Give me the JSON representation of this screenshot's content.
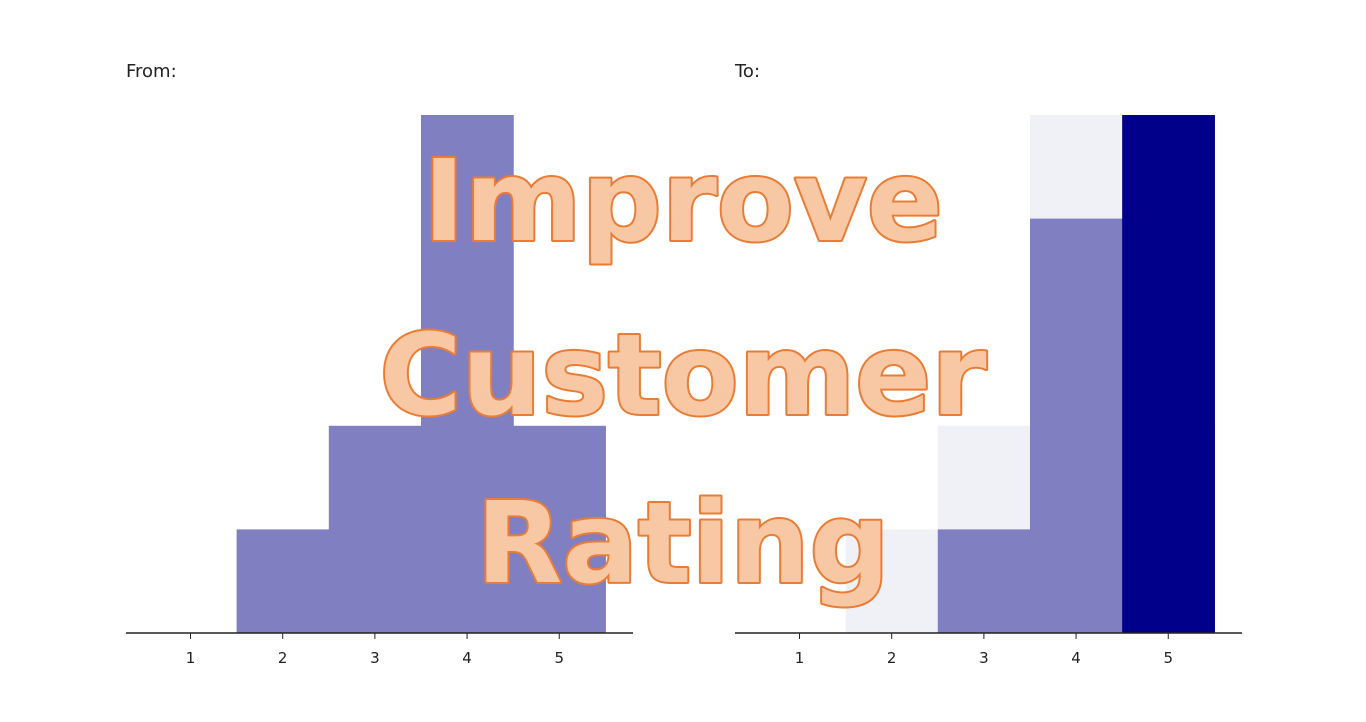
{
  "overlay": {
    "lines": [
      "Improve",
      "Customer",
      "Rating"
    ],
    "fill_color": "#F8C7A4",
    "stroke_color": "#EC7C34"
  },
  "chart_data": [
    {
      "type": "bar",
      "panel_label": "From:",
      "x_ticks": [
        "1",
        "2",
        "3",
        "4",
        "5"
      ],
      "xlim": [
        0.3,
        5.8
      ],
      "ylim": [
        0,
        5
      ],
      "grid": false,
      "series": [
        {
          "color": "#7F7FC2",
          "values": [
            0,
            1,
            2,
            5,
            2
          ]
        }
      ]
    },
    {
      "type": "bar",
      "panel_label": "To:",
      "x_ticks": [
        "1",
        "2",
        "3",
        "4",
        "5"
      ],
      "xlim": [
        0.3,
        5.8
      ],
      "ylim": [
        0,
        5
      ],
      "grid": false,
      "series": [
        {
          "color": "#F0F1F7",
          "values": [
            0,
            1,
            2,
            5,
            2
          ]
        },
        {
          "color": "#7F7FC2",
          "values": [
            0,
            0,
            1,
            4,
            2
          ]
        },
        {
          "color": "#00008B",
          "values": [
            0,
            0,
            0,
            0,
            5
          ]
        }
      ]
    }
  ]
}
